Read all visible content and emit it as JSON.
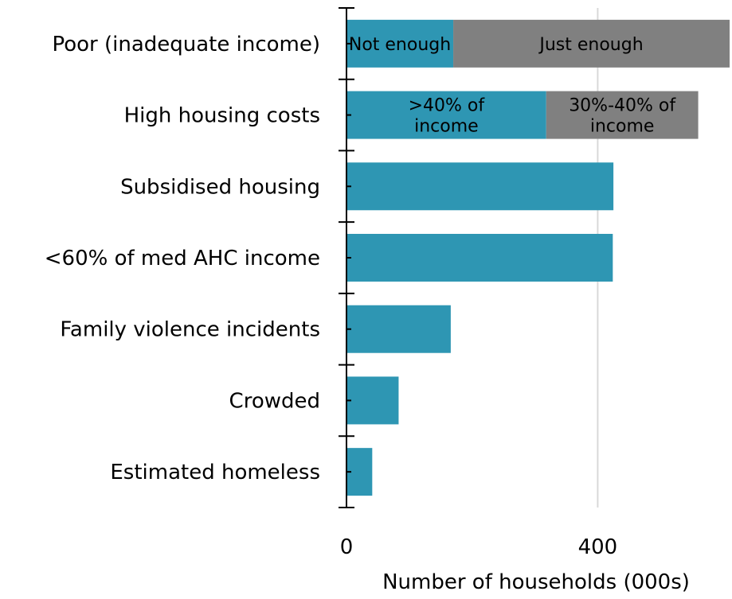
{
  "chart_data": {
    "type": "bar",
    "orientation": "horizontal",
    "stacked": true,
    "categories": [
      "Poor (inadequate income)",
      "High housing costs",
      "Subsidised housing",
      "<60% of med AHC income",
      "Family violence incidents",
      "Crowded",
      "Estimated homeless"
    ],
    "bars": [
      {
        "category": "Poor (inadequate income)",
        "segments": [
          {
            "value": 170,
            "color": "#2e96b3",
            "label": "Not enough"
          },
          {
            "value": 440,
            "color": "#808080",
            "label": "Just enough"
          }
        ]
      },
      {
        "category": "High housing costs",
        "segments": [
          {
            "value": 318,
            "color": "#2e96b3",
            "label": ">40% of income",
            "label_lines": [
              ">40% of",
              "income"
            ]
          },
          {
            "value": 242,
            "color": "#808080",
            "label": "30%-40% of income",
            "label_lines": [
              "30%-40% of",
              "income"
            ]
          }
        ]
      },
      {
        "category": "Subsidised housing",
        "segments": [
          {
            "value": 425,
            "color": "#2e96b3"
          }
        ]
      },
      {
        "category": "<60% of med AHC income",
        "segments": [
          {
            "value": 424,
            "color": "#2e96b3"
          }
        ]
      },
      {
        "category": "Family violence incidents",
        "segments": [
          {
            "value": 166,
            "color": "#2e96b3"
          }
        ]
      },
      {
        "category": "Crowded",
        "segments": [
          {
            "value": 83,
            "color": "#2e96b3"
          }
        ]
      },
      {
        "category": "Estimated homeless",
        "segments": [
          {
            "value": 41,
            "color": "#2e96b3"
          }
        ]
      }
    ],
    "xlabel": "Number of households (000s)",
    "xlim": [
      0,
      610
    ],
    "xticks": [
      0,
      400
    ],
    "grid": "vertical at 400",
    "colors": {
      "primary": "#2e96b3",
      "secondary": "#808080",
      "gridline": "#d9d9d9"
    }
  }
}
